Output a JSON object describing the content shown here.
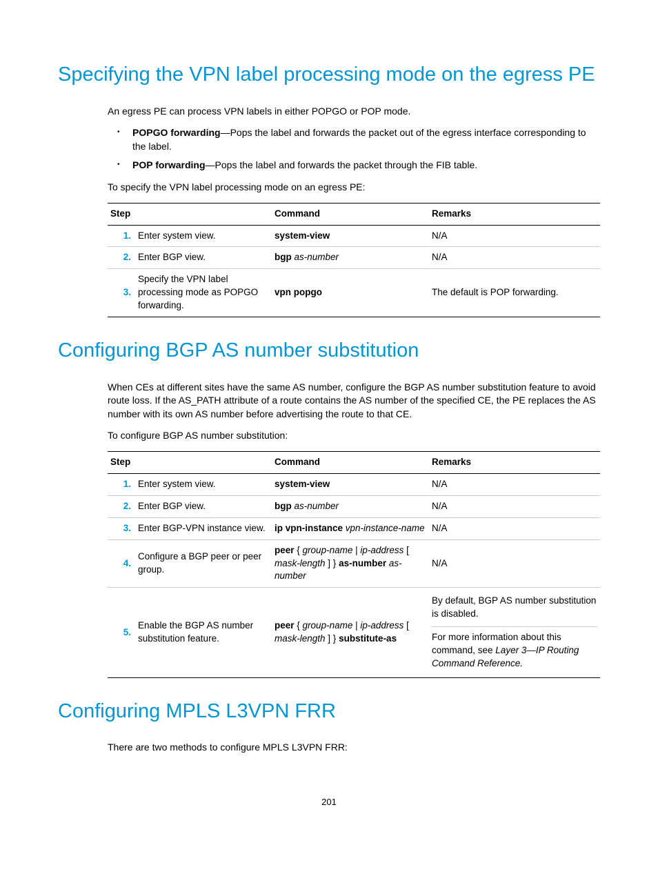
{
  "page_number": "201",
  "section1": {
    "title": "Specifying the VPN label processing mode on the egress PE",
    "intro": "An egress PE can process VPN labels in either POPGO or POP mode.",
    "bullet1_bold": "POPGO forwarding",
    "bullet1_rest": "—Pops the label and forwards the packet out of the egress interface corresponding to the label.",
    "bullet2_bold": "POP forwarding",
    "bullet2_rest": "—Pops the label and forwards the packet through the FIB table.",
    "lead": "To specify the VPN label processing mode on an egress PE:",
    "th_step": "Step",
    "th_cmd": "Command",
    "th_rem": "Remarks",
    "r1_num": "1.",
    "r1_desc": "Enter system view.",
    "r1_cmd": "system-view",
    "r1_rem": "N/A",
    "r2_num": "2.",
    "r2_desc": "Enter BGP view.",
    "r2_cmd_b": "bgp",
    "r2_cmd_i": " as-number",
    "r2_rem": "N/A",
    "r3_num": "3.",
    "r3_desc": "Specify the VPN label processing mode as POPGO forwarding.",
    "r3_cmd": "vpn popgo",
    "r3_rem": "The default is POP forwarding."
  },
  "section2": {
    "title": "Configuring BGP AS number substitution",
    "intro": "When CEs at different sites have the same AS number, configure the BGP AS number substitution feature to avoid route loss. If the AS_PATH attribute of a route contains the AS number of the specified CE, the PE replaces the AS number with its own AS number before advertising the route to that CE.",
    "lead": "To configure BGP AS number substitution:",
    "th_step": "Step",
    "th_cmd": "Command",
    "th_rem": "Remarks",
    "r1_num": "1.",
    "r1_desc": "Enter system view.",
    "r1_cmd": "system-view",
    "r1_rem": "N/A",
    "r2_num": "2.",
    "r2_desc": "Enter BGP view.",
    "r2_cmd_b": "bgp",
    "r2_cmd_i": " as-number",
    "r2_rem": "N/A",
    "r3_num": "3.",
    "r3_desc": "Enter BGP-VPN instance view.",
    "r3_cmd_b": "ip vpn-instance",
    "r3_cmd_i": " vpn-instance-name",
    "r3_rem": "N/A",
    "r4_num": "4.",
    "r4_desc": "Configure a BGP peer or peer group.",
    "r4_cmd_b1": "peer",
    "r4_cmd_t1": " { ",
    "r4_cmd_i1": "group-name",
    "r4_cmd_t2": " | ",
    "r4_cmd_i2": "ip-address",
    "r4_cmd_t3": " [ ",
    "r4_cmd_i3": "mask-length",
    "r4_cmd_t4": " ] } ",
    "r4_cmd_b2": "as-number",
    "r4_cmd_i4": " as-number",
    "r4_rem": "N/A",
    "r5_num": "5.",
    "r5_desc": "Enable the BGP AS number substitution feature.",
    "r5_cmd_b1": "peer",
    "r5_cmd_t1": " { ",
    "r5_cmd_i1": "group-name",
    "r5_cmd_t2": " | ",
    "r5_cmd_i2": "ip-address",
    "r5_cmd_t3": " [ ",
    "r5_cmd_i3": "mask-length",
    "r5_cmd_t4": " ] } ",
    "r5_cmd_b2": "substitute-as",
    "r5_rem1": "By default, BGP AS number substitution is disabled.",
    "r5_rem2a": "For more information about this command, see ",
    "r5_rem2b": "Layer 3—IP Routing Command Reference.",
    "r5_rem2b_1": "Layer 3—IP Routing Command Reference."
  },
  "section3": {
    "title": "Configuring MPLS L3VPN FRR",
    "intro": "There are two methods to configure MPLS L3VPN FRR:"
  }
}
